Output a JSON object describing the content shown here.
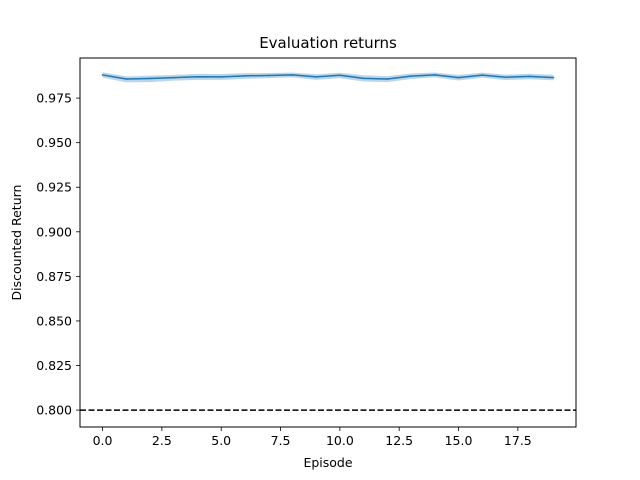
{
  "chart_data": {
    "type": "line",
    "title": "Evaluation returns",
    "xlabel": "Episode",
    "ylabel": "Discounted Return",
    "xlim": [
      -0.95,
      19.95
    ],
    "ylim": [
      0.7905,
      0.9975
    ],
    "xticks": [
      0.0,
      2.5,
      5.0,
      7.5,
      10.0,
      12.5,
      15.0,
      17.5
    ],
    "xtick_labels": [
      "0.0",
      "2.5",
      "5.0",
      "7.5",
      "10.0",
      "12.5",
      "15.0",
      "17.5"
    ],
    "yticks": [
      0.8,
      0.825,
      0.85,
      0.875,
      0.9,
      0.925,
      0.95,
      0.975
    ],
    "ytick_labels": [
      "0.800",
      "0.825",
      "0.850",
      "0.875",
      "0.900",
      "0.925",
      "0.950",
      "0.975"
    ],
    "grid": false,
    "series": [
      {
        "x": [
          0,
          1,
          2,
          3,
          4,
          5,
          6,
          7,
          8,
          9,
          10,
          11,
          12,
          13,
          14,
          15,
          16,
          17,
          18,
          19
        ],
        "values": [
          0.988,
          0.9857,
          0.986,
          0.9865,
          0.987,
          0.9869,
          0.9875,
          0.9877,
          0.988,
          0.9869,
          0.9878,
          0.9861,
          0.9857,
          0.9873,
          0.988,
          0.9865,
          0.9879,
          0.9867,
          0.9872,
          0.9865
        ],
        "lower": [
          0.9865,
          0.9838,
          0.984,
          0.9848,
          0.9852,
          0.9852,
          0.9858,
          0.9862,
          0.9866,
          0.9852,
          0.9862,
          0.9843,
          0.984,
          0.9857,
          0.9866,
          0.9849,
          0.9864,
          0.9851,
          0.9856,
          0.985
        ],
        "upper": [
          0.9895,
          0.9872,
          0.9876,
          0.988,
          0.9886,
          0.9885,
          0.989,
          0.9891,
          0.9893,
          0.9884,
          0.9892,
          0.9878,
          0.9873,
          0.9888,
          0.9894,
          0.988,
          0.9893,
          0.9882,
          0.9887,
          0.988
        ],
        "color": "#1f77b4",
        "band_color": "#1f77b4"
      }
    ],
    "reference_line": {
      "y": 0.8,
      "style": "dashed",
      "color": "#000000"
    }
  }
}
